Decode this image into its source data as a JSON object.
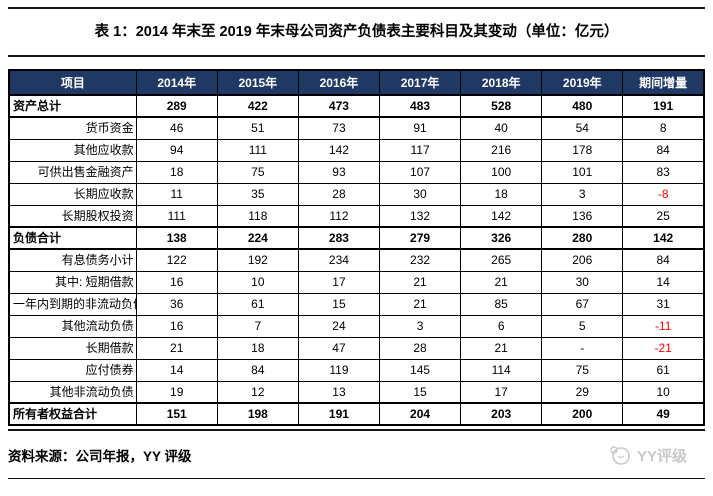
{
  "title": "表 1：2014 年末至 2019 年末母公司资产负债表主要科目及其变动（单位：亿元）",
  "table": {
    "columns": [
      "项目",
      "2014年",
      "2015年",
      "2016年",
      "2017年",
      "2018年",
      "2019年",
      "期间增量"
    ],
    "rows": [
      {
        "label": "资产总计",
        "type": "section",
        "values": [
          "289",
          "422",
          "473",
          "483",
          "528",
          "480",
          "191"
        ]
      },
      {
        "label": "货币资金",
        "type": "item",
        "values": [
          "46",
          "51",
          "73",
          "91",
          "40",
          "54",
          "8"
        ]
      },
      {
        "label": "其他应收款",
        "type": "item",
        "values": [
          "94",
          "111",
          "142",
          "117",
          "216",
          "178",
          "84"
        ]
      },
      {
        "label": "可供出售金融资产",
        "type": "item",
        "values": [
          "18",
          "75",
          "93",
          "107",
          "100",
          "101",
          "83"
        ]
      },
      {
        "label": "长期应收款",
        "type": "item",
        "values": [
          "11",
          "35",
          "28",
          "30",
          "18",
          "3",
          "-8"
        ]
      },
      {
        "label": "长期股权投资",
        "type": "item",
        "values": [
          "111",
          "118",
          "112",
          "132",
          "142",
          "136",
          "25"
        ]
      },
      {
        "label": "负债合计",
        "type": "section",
        "values": [
          "138",
          "224",
          "283",
          "279",
          "326",
          "280",
          "142"
        ]
      },
      {
        "label": "有息债务小计",
        "type": "item",
        "values": [
          "122",
          "192",
          "234",
          "232",
          "265",
          "206",
          "84"
        ]
      },
      {
        "label": "其中: 短期借款",
        "type": "item",
        "values": [
          "16",
          "10",
          "17",
          "21",
          "21",
          "30",
          "14"
        ]
      },
      {
        "label": "一年内到期的非流动负债",
        "type": "item",
        "values": [
          "36",
          "61",
          "15",
          "21",
          "85",
          "67",
          "31"
        ]
      },
      {
        "label": "其他流动负债",
        "type": "item",
        "values": [
          "16",
          "7",
          "24",
          "3",
          "6",
          "5",
          "-11"
        ]
      },
      {
        "label": "长期借款",
        "type": "item",
        "values": [
          "21",
          "18",
          "47",
          "28",
          "21",
          "-",
          "-21"
        ]
      },
      {
        "label": "应付债券",
        "type": "item",
        "values": [
          "14",
          "84",
          "119",
          "145",
          "114",
          "75",
          "61"
        ]
      },
      {
        "label": "其他非流动负债",
        "type": "item",
        "values": [
          "19",
          "12",
          "13",
          "15",
          "17",
          "29",
          "10"
        ]
      },
      {
        "label": "所有者权益合计",
        "type": "section",
        "values": [
          "151",
          "198",
          "191",
          "204",
          "203",
          "200",
          "49"
        ]
      }
    ]
  },
  "footer": {
    "source": "资料来源：公司年报，YY 评级",
    "watermark": "YY评级"
  },
  "colors": {
    "header_bg": "#1F3864",
    "header_text": "#FFFFFF",
    "negative": "#FF0000",
    "watermark": "#C9C9C9"
  }
}
